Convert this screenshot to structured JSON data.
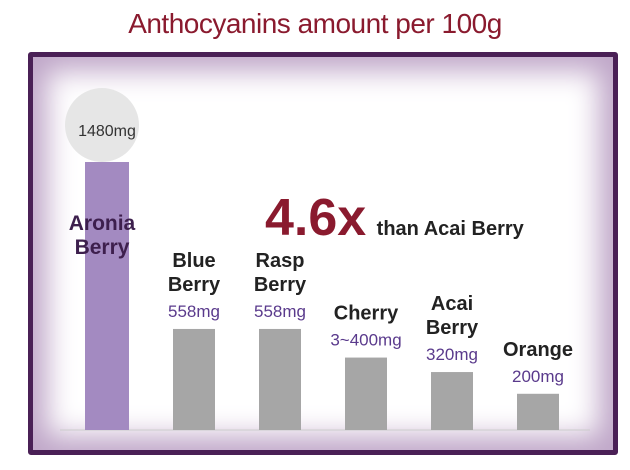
{
  "title": "Anthocyanins amount per 100g",
  "callout": {
    "value": "4.6x",
    "text": "than Acai Berry"
  },
  "colors": {
    "highlight": "#a38ac1",
    "bar": "#a6a6a6",
    "title": "#8a1a2e",
    "valueText": "#5a3a8c",
    "nameText": "#222222",
    "highlightName": "#3d1f4d"
  },
  "chart_data": {
    "type": "bar",
    "title": "Anthocyanins amount per 100g",
    "unit": "mg",
    "categories": [
      {
        "name_lines": [
          "Aronia",
          "Berry"
        ],
        "label": "1480mg",
        "value": 1480,
        "highlight": true
      },
      {
        "name_lines": [
          "Blue",
          "Berry"
        ],
        "label": "558mg",
        "value": 558,
        "highlight": false
      },
      {
        "name_lines": [
          "Rasp",
          "Berry"
        ],
        "label": "558mg",
        "value": 558,
        "highlight": false
      },
      {
        "name_lines": [
          "Cherry"
        ],
        "label": "3~400mg",
        "value": 400,
        "highlight": false
      },
      {
        "name_lines": [
          "Acai",
          "Berry"
        ],
        "label": "320mg",
        "value": 320,
        "highlight": false
      },
      {
        "name_lines": [
          "Orange"
        ],
        "label": "200mg",
        "value": 200,
        "highlight": false
      }
    ]
  }
}
